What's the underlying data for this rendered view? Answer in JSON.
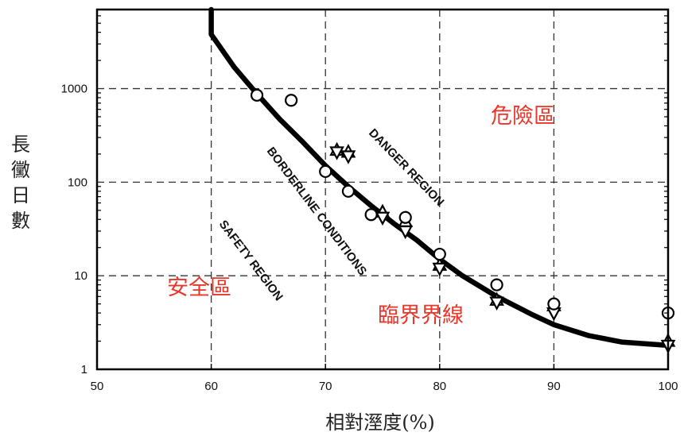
{
  "chart_data": {
    "type": "scatter",
    "xlabel": "相對溼度(%)",
    "ylabel": "長黴日數",
    "xlim": [
      50,
      100
    ],
    "ylim": [
      1,
      7000
    ],
    "y_scale": "log",
    "x_ticks": [
      50,
      60,
      70,
      80,
      90,
      100
    ],
    "y_ticks": [
      1,
      10,
      100,
      1000
    ],
    "grid": true,
    "accent_color": "#e8362a",
    "region_labels": {
      "danger_en": "DANGER REGION",
      "borderline_en": "BORDERLINE CONDITIONS",
      "safety_en": "SAFETY REGION",
      "danger_zh": "危險區",
      "safety_zh": "安全區",
      "borderline_zh": "臨界界線"
    },
    "curve": {
      "x": [
        60,
        60,
        62,
        64,
        66,
        68,
        70,
        72,
        74,
        76,
        78,
        80,
        82,
        85,
        88,
        90,
        93,
        96,
        100
      ],
      "y": [
        7000,
        3800,
        1700,
        880,
        470,
        270,
        150,
        90,
        56,
        36,
        24,
        15,
        10,
        6,
        3.9,
        3.0,
        2.3,
        1.95,
        1.8
      ]
    },
    "circles": {
      "x": [
        64,
        67,
        70,
        72,
        74,
        77,
        80,
        85,
        90,
        100
      ],
      "y": [
        850,
        750,
        130,
        80,
        45,
        42,
        17,
        8,
        5,
        4
      ]
    },
    "triangles_up": {
      "x": [
        71,
        72,
        75,
        77,
        80,
        85,
        90,
        100
      ],
      "y": [
        220,
        210,
        48,
        38,
        13,
        5.5,
        4.8,
        2.0
      ]
    },
    "triangles_down": {
      "x": [
        71,
        72,
        75,
        77,
        80,
        85,
        90,
        100
      ],
      "y": [
        210,
        190,
        42,
        30,
        12,
        5.2,
        4.0,
        1.8
      ]
    }
  }
}
